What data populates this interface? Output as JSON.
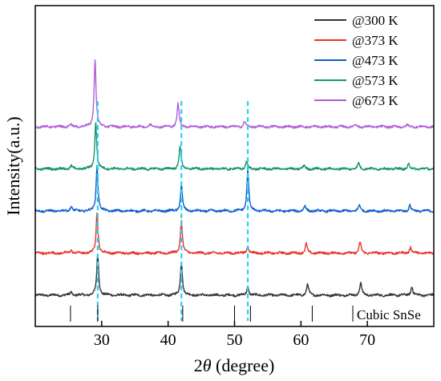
{
  "chart_data": {
    "type": "line",
    "xlabel_prefix": "2",
    "xlabel_symbol": "θ",
    "xlabel_suffix": " (degree)",
    "ylabel": "Intensity(a.u.)",
    "xlim": [
      20,
      80
    ],
    "xticks": [
      30,
      40,
      50,
      60,
      70
    ],
    "y_ticks_shown": false,
    "grid": false,
    "legend_position": "top-right",
    "series": [
      {
        "name": "@300 K",
        "color": "#333333",
        "offset": 0,
        "peaks": [
          [
            25.4,
            0.08
          ],
          [
            29.4,
            1.0
          ],
          [
            42.0,
            0.82
          ],
          [
            52.0,
            0.22
          ],
          [
            61.0,
            0.27
          ],
          [
            69.0,
            0.31
          ],
          [
            76.7,
            0.21
          ]
        ]
      },
      {
        "name": "@373 K",
        "color": "#e8322b",
        "offset": 1,
        "peaks": [
          [
            25.4,
            0.08
          ],
          [
            29.3,
            0.99
          ],
          [
            42.0,
            0.8
          ],
          [
            52.0,
            0.18
          ],
          [
            60.8,
            0.22
          ],
          [
            68.9,
            0.26
          ],
          [
            76.5,
            0.15
          ]
        ]
      },
      {
        "name": "@473 K",
        "color": "#0e5ccd",
        "offset": 2,
        "peaks": [
          [
            25.4,
            0.12
          ],
          [
            29.3,
            1.1
          ],
          [
            42.0,
            0.62
          ],
          [
            52.0,
            0.98
          ],
          [
            60.6,
            0.12
          ],
          [
            68.8,
            0.14
          ],
          [
            76.4,
            0.14
          ]
        ]
      },
      {
        "name": "@573 K",
        "color": "#14936b",
        "offset": 3,
        "peaks": [
          [
            25.4,
            0.08
          ],
          [
            29.1,
            1.12
          ],
          [
            41.8,
            0.56
          ],
          [
            51.8,
            0.18
          ],
          [
            60.5,
            0.08
          ],
          [
            68.7,
            0.14
          ],
          [
            76.2,
            0.11
          ]
        ]
      },
      {
        "name": "@673 K",
        "color": "#b05fd8",
        "offset": 4,
        "peaks": [
          [
            25.3,
            0.06
          ],
          [
            29.0,
            1.62
          ],
          [
            37.3,
            0.06
          ],
          [
            41.5,
            0.56
          ],
          [
            51.5,
            0.13
          ],
          [
            68.2,
            0.05
          ],
          [
            76.0,
            0.04
          ]
        ]
      }
    ],
    "dashed_reference_lines_x": [
      29.4,
      42.0,
      52.0
    ],
    "dashed_line_color": "#22d3ee",
    "reference_pattern": {
      "label": "Cubic SnSe",
      "positions": [
        25.3,
        29.4,
        42.2,
        50.0,
        52.4,
        61.7
      ]
    }
  }
}
